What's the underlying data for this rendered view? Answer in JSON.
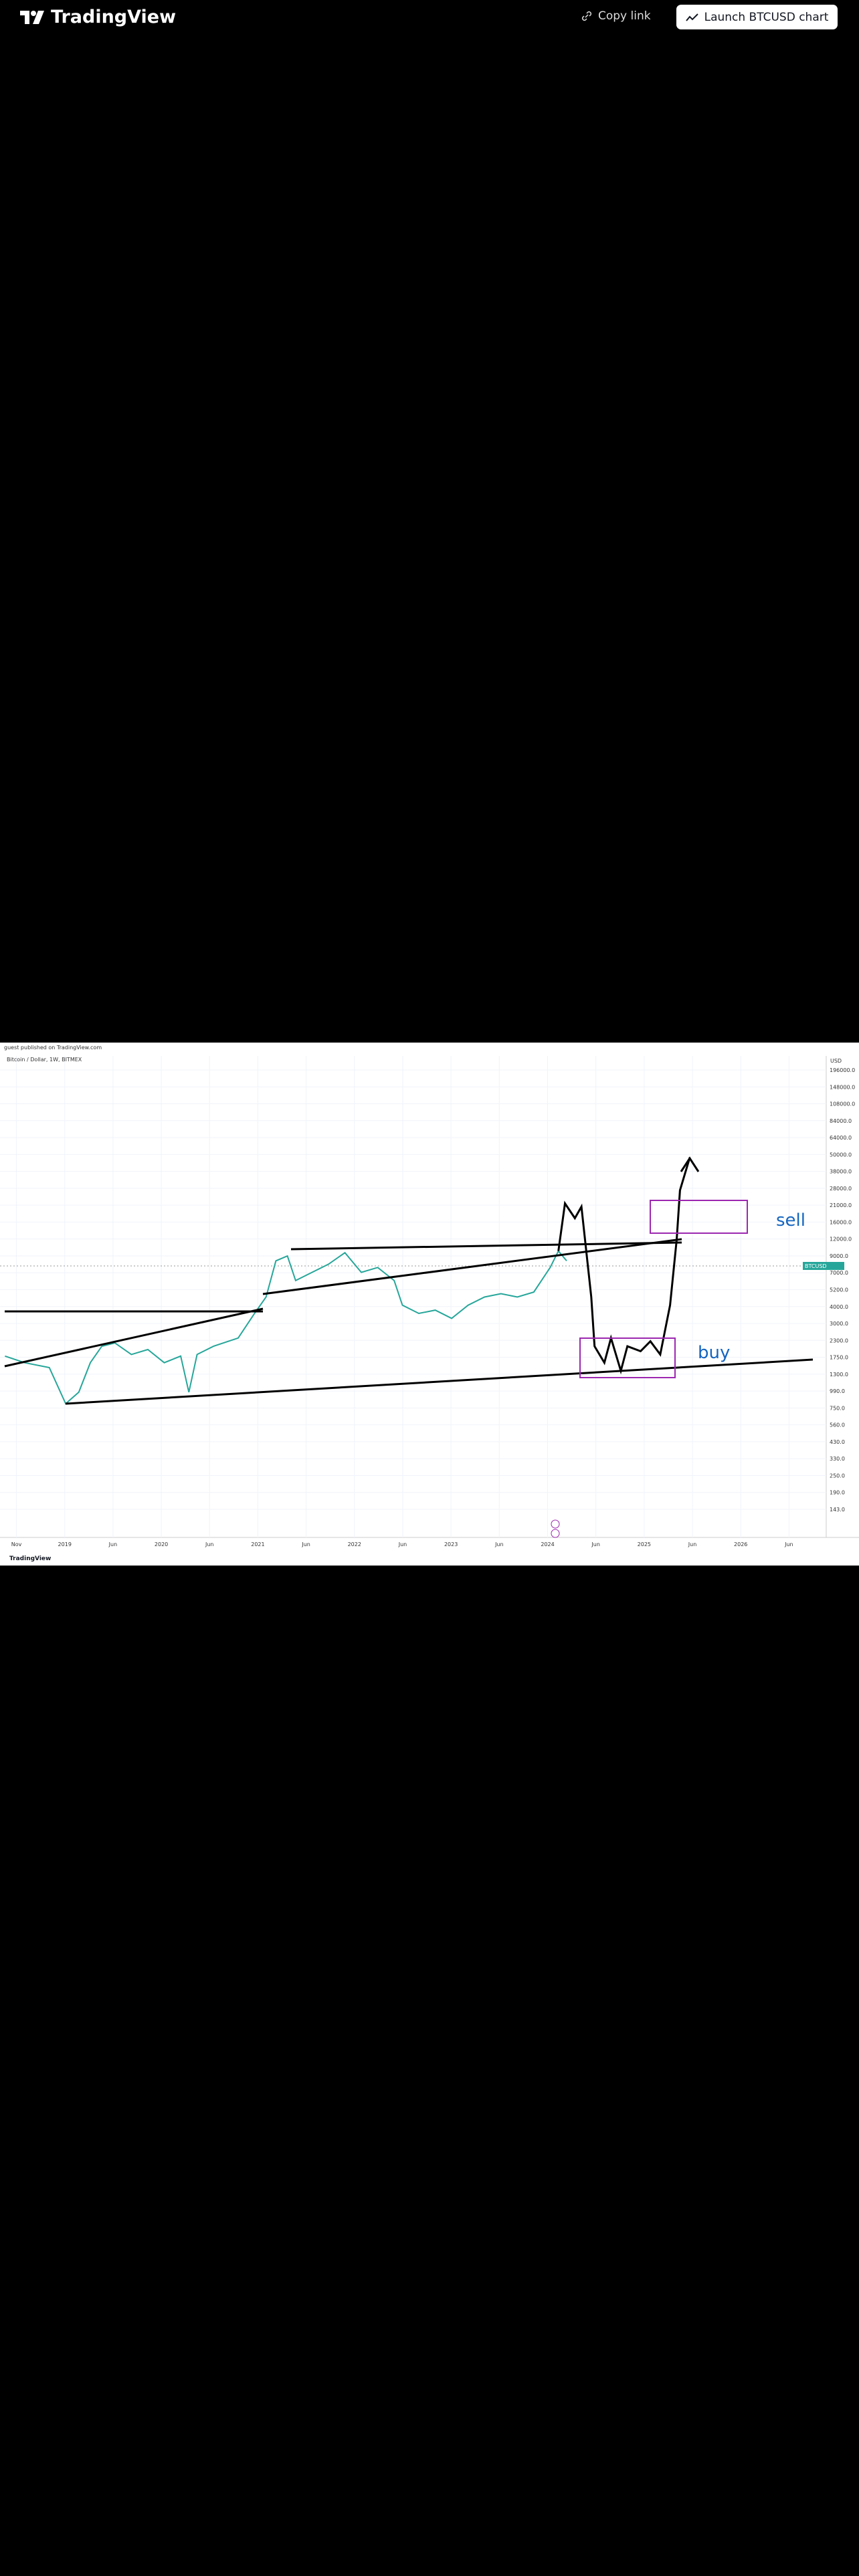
{
  "header": {
    "logo": "TradingView",
    "copy_link": "Copy link",
    "launch_button": "Launch BTCUSD chart"
  },
  "snapshot": {
    "credit": "guest published on TradingView.com",
    "symbol": "Bitcoin / Dollar, 1W, BITMEX",
    "price_axis": {
      "currency": "USD",
      "labels": [
        "196000.0",
        "148000.0",
        "108000.0",
        "84000.0",
        "64000.0",
        "50000.0",
        "38000.0",
        "28000.0",
        "21000.0",
        "16000.0",
        "12000.0",
        "9000.0",
        "7000.0",
        "5200.0",
        "4000.0",
        "3000.0",
        "2300.0",
        "1750.0",
        "1300.0",
        "990.0",
        "750.0",
        "560.0",
        "430.0",
        "330.0",
        "250.0",
        "190.0",
        "143.0"
      ]
    },
    "time_axis": [
      "Nov",
      "2019",
      "Jun",
      "2020",
      "Jun",
      "2021",
      "Jun",
      "2022",
      "Jun",
      "2023",
      "Jun",
      "2024",
      "Jun",
      "2025",
      "Jun",
      "2026",
      "Jun"
    ],
    "annotations": {
      "sell": "sell",
      "buy": "buy"
    },
    "price_tag": "BTCUSD",
    "footer": "TradingView"
  }
}
